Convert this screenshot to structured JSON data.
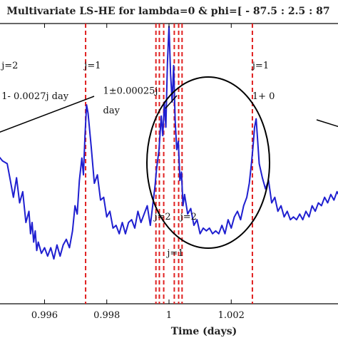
{
  "chart_data": {
    "type": "line",
    "title": "Multivariate LS-HE for lambda=0 & phi=[ - 87.5 : 2.5 : 87",
    "xlabel": "Time (days)",
    "ylabel": "",
    "xlim": [
      0.9945,
      1.0055
    ],
    "ylim": [
      0,
      1.0
    ],
    "x_ticks": [
      0.996,
      0.998,
      1.0,
      1.002
    ],
    "x_tick_labels": [
      "0.996",
      "0.998",
      "1",
      "1.002"
    ],
    "series": [
      {
        "color": "#1f1fd0",
        "x": [
          0.9945,
          0.99465,
          0.9948,
          0.9949,
          0.995,
          0.9951,
          0.9952,
          0.9953,
          0.9954,
          0.9955,
          0.99555,
          0.9956,
          0.99565,
          0.9957,
          0.99575,
          0.9958,
          0.9959,
          0.996,
          0.9961,
          0.9962,
          0.9963,
          0.9964,
          0.9965,
          0.9966,
          0.9967,
          0.9968,
          0.9969,
          0.99698,
          0.99705,
          0.99712,
          0.9972,
          0.99725,
          0.9973,
          0.99735,
          0.9974,
          0.9975,
          0.9976,
          0.9977,
          0.9978,
          0.9979,
          0.998,
          0.9981,
          0.9982,
          0.9983,
          0.9984,
          0.9985,
          0.9986,
          0.9987,
          0.9988,
          0.9989,
          0.999,
          0.9991,
          0.9992,
          0.9993,
          0.9994,
          0.99955,
          0.9996,
          0.99968,
          0.99975,
          0.9998,
          0.99985,
          0.9999,
          0.99995,
          1.0,
          1.00005,
          1.0001,
          1.00015,
          1.0002,
          1.00025,
          1.0003,
          1.00035,
          1.0004,
          1.00045,
          1.0005,
          1.0006,
          1.0007,
          1.0008,
          1.0009,
          1.001,
          1.0011,
          1.0012,
          1.0013,
          1.0014,
          1.0015,
          1.0016,
          1.0017,
          1.0018,
          1.0019,
          1.002,
          1.0021,
          1.0022,
          1.0023,
          1.0024,
          1.0025,
          1.00258,
          1.00265,
          1.0027,
          1.00275,
          1.0028,
          1.00285,
          1.0029,
          1.003,
          1.0031,
          1.0032,
          1.0033,
          1.0034,
          1.0035,
          1.0036,
          1.0037,
          1.0038,
          1.0039,
          1.004,
          1.0041,
          1.0042,
          1.0043,
          1.0044,
          1.0045,
          1.0046,
          1.0047,
          1.0048,
          1.0049,
          1.005,
          1.0051,
          1.0052,
          1.0053,
          1.0054,
          1.0055
        ],
        "y": [
          0.53,
          0.51,
          0.5,
          0.44,
          0.38,
          0.45,
          0.36,
          0.4,
          0.29,
          0.33,
          0.25,
          0.29,
          0.22,
          0.26,
          0.19,
          0.22,
          0.18,
          0.2,
          0.17,
          0.2,
          0.16,
          0.21,
          0.17,
          0.21,
          0.23,
          0.2,
          0.26,
          0.35,
          0.32,
          0.44,
          0.52,
          0.46,
          0.6,
          0.71,
          0.68,
          0.56,
          0.43,
          0.46,
          0.37,
          0.38,
          0.31,
          0.33,
          0.27,
          0.28,
          0.25,
          0.29,
          0.25,
          0.29,
          0.3,
          0.27,
          0.33,
          0.29,
          0.32,
          0.35,
          0.28,
          0.42,
          0.48,
          0.55,
          0.67,
          0.6,
          0.72,
          0.63,
          0.86,
          0.99,
          0.82,
          0.72,
          0.85,
          0.65,
          0.55,
          0.58,
          0.44,
          0.47,
          0.35,
          0.39,
          0.32,
          0.34,
          0.28,
          0.3,
          0.25,
          0.27,
          0.26,
          0.27,
          0.25,
          0.26,
          0.25,
          0.28,
          0.25,
          0.3,
          0.27,
          0.31,
          0.33,
          0.3,
          0.35,
          0.38,
          0.43,
          0.5,
          0.56,
          0.63,
          0.66,
          0.58,
          0.5,
          0.45,
          0.41,
          0.44,
          0.36,
          0.38,
          0.33,
          0.35,
          0.31,
          0.33,
          0.3,
          0.31,
          0.3,
          0.32,
          0.3,
          0.33,
          0.31,
          0.35,
          0.33,
          0.36,
          0.35,
          0.38,
          0.36,
          0.39,
          0.37,
          0.4,
          0.38
        ]
      }
    ],
    "vlines": {
      "color": "#e02020",
      "x": [
        0.99732,
        0.99958,
        0.99969,
        0.99983,
        1.00017,
        1.00031,
        1.00042,
        1.00268
      ]
    },
    "annotations": [
      {
        "text": "j=2",
        "x": 0.99462,
        "y": 0.84
      },
      {
        "text": "1- 0.0027j day",
        "x": 0.99462,
        "y": 0.73
      },
      {
        "text": "j=1",
        "x": 0.99728,
        "y": 0.84
      },
      {
        "text": "1±0.00025j",
        "x": 0.99788,
        "y": 0.75
      },
      {
        "text": "day",
        "x": 0.99788,
        "y": 0.68
      },
      {
        "text": "j=2",
        "x": 0.99953,
        "y": 0.3
      },
      {
        "text": "j=1",
        "x": 0.99994,
        "y": 0.17
      },
      {
        "text": "j=2",
        "x": 1.00036,
        "y": 0.3
      },
      {
        "text": "j=1",
        "x": 1.00268,
        "y": 0.84
      },
      {
        "text": "1+ 0",
        "x": 1.00268,
        "y": 0.73
      }
    ],
    "grid": false,
    "legend": "none"
  }
}
